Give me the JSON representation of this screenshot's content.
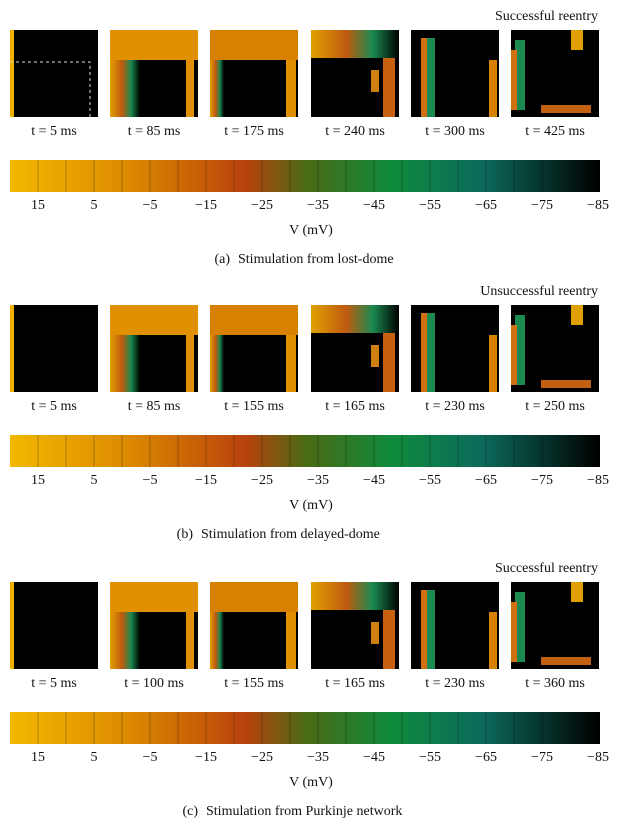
{
  "panels": [
    {
      "outcome": "Successful reentry",
      "frames": [
        "t = 5 ms",
        "t = 85 ms",
        "t = 175 ms",
        "t = 240 ms",
        "t = 300 ms",
        "t = 425 ms"
      ],
      "ticks": [
        "15",
        "5",
        "−5",
        "−15",
        "−25",
        "−35",
        "−45",
        "−55",
        "−65",
        "−75",
        "−85"
      ],
      "axis_label": "V (mV)",
      "label": "(a)",
      "caption": "Stimulation from lost-dome"
    },
    {
      "outcome": "Unsuccessful reentry",
      "frames": [
        "t = 5 ms",
        "t = 85 ms",
        "t = 155 ms",
        "t = 165 ms",
        "t = 230 ms",
        "t = 250 ms"
      ],
      "ticks": [
        "15",
        "5",
        "−5",
        "−15",
        "−25",
        "−35",
        "−45",
        "−55",
        "−65",
        "−75",
        "−85"
      ],
      "axis_label": "V (mV)",
      "label": "(b)",
      "caption": "Stimulation from delayed-dome"
    },
    {
      "outcome": "Successful reentry",
      "frames": [
        "t = 5 ms",
        "t = 100 ms",
        "t = 155 ms",
        "t = 165 ms",
        "t = 230 ms",
        "t = 360 ms"
      ],
      "ticks": [
        "15",
        "5",
        "−5",
        "−15",
        "−25",
        "−35",
        "−45",
        "−55",
        "−65",
        "−75",
        "−85"
      ],
      "axis_label": "V (mV)",
      "label": "(c)",
      "caption": "Stimulation from Purkinje network"
    }
  ]
}
